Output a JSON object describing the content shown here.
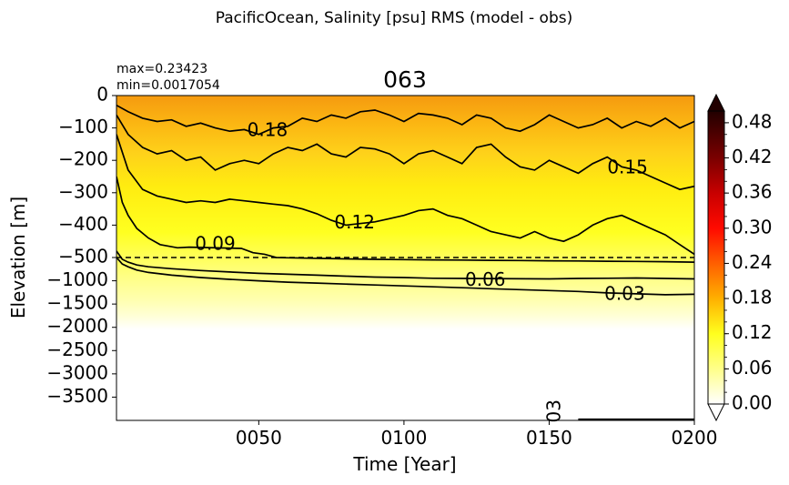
{
  "chart_data": {
    "type": "heatmap",
    "suptitle": "PacificOcean, Salinity [psu] RMS (model - obs)",
    "title": "063",
    "stats": {
      "max": "max=0.23423",
      "min": "min=0.0017054"
    },
    "xlabel": "Time [Year]",
    "ylabel": "Elevation [m]",
    "x_ticks": [
      "0050",
      "0100",
      "0150",
      "0200"
    ],
    "x_tick_values": [
      50,
      100,
      150,
      200
    ],
    "xlim": [
      1,
      200
    ],
    "y_ticks_upper": [
      "0",
      "−100",
      "−200",
      "−300",
      "−400",
      "−500"
    ],
    "y_ticks_lower": [
      "−1000",
      "−1500",
      "−2000",
      "−2500",
      "−3000",
      "−3500"
    ],
    "y_upper_range": [
      0,
      -500
    ],
    "y_lower_range": [
      -500,
      -4000
    ],
    "split_depth": -500,
    "colorbar": {
      "ticks": [
        "0.00",
        "0.06",
        "0.12",
        "0.18",
        "0.24",
        "0.30",
        "0.36",
        "0.42",
        "0.48"
      ],
      "range": [
        0,
        0.5
      ],
      "cmap": "hot_r",
      "extend": "both"
    },
    "contours": [
      {
        "level": 0.18,
        "label": "0.18",
        "label_pos": [
          53,
          -110
        ],
        "points": [
          [
            1,
            -30
          ],
          [
            5,
            -50
          ],
          [
            10,
            -70
          ],
          [
            15,
            -80
          ],
          [
            20,
            -75
          ],
          [
            25,
            -95
          ],
          [
            30,
            -85
          ],
          [
            35,
            -100
          ],
          [
            40,
            -110
          ],
          [
            45,
            -105
          ],
          [
            50,
            -120
          ],
          [
            55,
            -100
          ],
          [
            60,
            -95
          ],
          [
            65,
            -70
          ],
          [
            70,
            -80
          ],
          [
            75,
            -60
          ],
          [
            80,
            -70
          ],
          [
            85,
            -50
          ],
          [
            90,
            -45
          ],
          [
            95,
            -60
          ],
          [
            100,
            -80
          ],
          [
            105,
            -55
          ],
          [
            110,
            -60
          ],
          [
            115,
            -70
          ],
          [
            120,
            -90
          ],
          [
            125,
            -60
          ],
          [
            130,
            -70
          ],
          [
            135,
            -100
          ],
          [
            140,
            -110
          ],
          [
            145,
            -90
          ],
          [
            150,
            -60
          ],
          [
            155,
            -80
          ],
          [
            160,
            -100
          ],
          [
            165,
            -90
          ],
          [
            170,
            -70
          ],
          [
            175,
            -100
          ],
          [
            180,
            -80
          ],
          [
            185,
            -95
          ],
          [
            190,
            -70
          ],
          [
            195,
            -100
          ],
          [
            200,
            -80
          ]
        ]
      },
      {
        "level": 0.15,
        "label": "0.15",
        "label_pos": [
          177,
          -225
        ],
        "points": [
          [
            1,
            -60
          ],
          [
            5,
            -120
          ],
          [
            10,
            -160
          ],
          [
            15,
            -180
          ],
          [
            20,
            -170
          ],
          [
            25,
            -200
          ],
          [
            30,
            -190
          ],
          [
            35,
            -230
          ],
          [
            40,
            -210
          ],
          [
            45,
            -200
          ],
          [
            50,
            -210
          ],
          [
            55,
            -180
          ],
          [
            60,
            -160
          ],
          [
            65,
            -170
          ],
          [
            70,
            -150
          ],
          [
            75,
            -180
          ],
          [
            80,
            -190
          ],
          [
            85,
            -160
          ],
          [
            90,
            -165
          ],
          [
            95,
            -180
          ],
          [
            100,
            -210
          ],
          [
            105,
            -180
          ],
          [
            110,
            -170
          ],
          [
            115,
            -190
          ],
          [
            120,
            -210
          ],
          [
            125,
            -160
          ],
          [
            130,
            -150
          ],
          [
            135,
            -190
          ],
          [
            140,
            -220
          ],
          [
            145,
            -230
          ],
          [
            150,
            -200
          ],
          [
            155,
            -220
          ],
          [
            160,
            -240
          ],
          [
            165,
            -210
          ],
          [
            170,
            -190
          ],
          [
            175,
            -220
          ],
          [
            180,
            -230
          ],
          [
            185,
            -250
          ],
          [
            190,
            -270
          ],
          [
            195,
            -290
          ],
          [
            200,
            -280
          ]
        ]
      },
      {
        "level": 0.12,
        "label": "0.12",
        "label_pos": [
          83,
          -395
        ],
        "points": [
          [
            1,
            -120
          ],
          [
            5,
            -230
          ],
          [
            10,
            -290
          ],
          [
            15,
            -310
          ],
          [
            20,
            -320
          ],
          [
            25,
            -330
          ],
          [
            30,
            -325
          ],
          [
            35,
            -330
          ],
          [
            40,
            -320
          ],
          [
            45,
            -325
          ],
          [
            50,
            -330
          ],
          [
            55,
            -335
          ],
          [
            60,
            -340
          ],
          [
            65,
            -350
          ],
          [
            70,
            -365
          ],
          [
            75,
            -385
          ],
          [
            80,
            -400
          ],
          [
            90,
            -390
          ],
          [
            95,
            -380
          ],
          [
            100,
            -370
          ],
          [
            105,
            -355
          ],
          [
            110,
            -350
          ],
          [
            115,
            -370
          ],
          [
            120,
            -380
          ],
          [
            125,
            -400
          ],
          [
            130,
            -420
          ],
          [
            135,
            -430
          ],
          [
            140,
            -440
          ],
          [
            145,
            -420
          ],
          [
            150,
            -440
          ],
          [
            155,
            -450
          ],
          [
            160,
            -430
          ],
          [
            165,
            -400
          ],
          [
            170,
            -380
          ],
          [
            175,
            -370
          ],
          [
            180,
            -390
          ],
          [
            185,
            -410
          ],
          [
            190,
            -430
          ],
          [
            195,
            -460
          ],
          [
            200,
            -490
          ]
        ]
      },
      {
        "level": 0.09,
        "label": "0.09",
        "label_pos": [
          35,
          -460
        ],
        "points": [
          [
            1,
            -250
          ],
          [
            3,
            -330
          ],
          [
            5,
            -370
          ],
          [
            8,
            -410
          ],
          [
            12,
            -440
          ],
          [
            16,
            -460
          ],
          [
            22,
            -470
          ],
          [
            26,
            -468
          ],
          [
            44,
            -472
          ],
          [
            48,
            -485
          ],
          [
            52,
            -490
          ],
          [
            56,
            -500
          ],
          [
            60,
            -505
          ],
          [
            64,
            -510
          ],
          [
            68,
            -515
          ],
          [
            72,
            -520
          ],
          [
            80,
            -530
          ],
          [
            90,
            -540
          ],
          [
            100,
            -545
          ],
          [
            110,
            -550
          ],
          [
            120,
            -555
          ],
          [
            130,
            -560
          ],
          [
            140,
            -565
          ],
          [
            150,
            -570
          ],
          [
            160,
            -575
          ],
          [
            170,
            -580
          ],
          [
            180,
            -585
          ],
          [
            190,
            -590
          ],
          [
            200,
            -600
          ]
        ]
      },
      {
        "level": 0.06,
        "label": "0.06",
        "label_pos": [
          128,
          -1000
        ],
        "points": [
          [
            1,
            -480
          ],
          [
            3,
            -540
          ],
          [
            5,
            -600
          ],
          [
            8,
            -660
          ],
          [
            12,
            -700
          ],
          [
            20,
            -740
          ],
          [
            30,
            -780
          ],
          [
            40,
            -810
          ],
          [
            50,
            -840
          ],
          [
            60,
            -860
          ],
          [
            70,
            -880
          ],
          [
            80,
            -900
          ],
          [
            90,
            -920
          ],
          [
            100,
            -930
          ],
          [
            110,
            -945
          ],
          [
            150,
            -960
          ],
          [
            160,
            -950
          ],
          [
            170,
            -945
          ],
          [
            180,
            -940
          ],
          [
            190,
            -950
          ],
          [
            200,
            -960
          ]
        ]
      },
      {
        "level": 0.03,
        "label": "0.03",
        "label_pos": [
          176,
          -1300
        ],
        "points": [
          [
            1,
            -500
          ],
          [
            3,
            -640
          ],
          [
            5,
            -700
          ],
          [
            8,
            -770
          ],
          [
            12,
            -820
          ],
          [
            20,
            -880
          ],
          [
            30,
            -930
          ],
          [
            40,
            -970
          ],
          [
            50,
            -1000
          ],
          [
            60,
            -1030
          ],
          [
            70,
            -1050
          ],
          [
            80,
            -1070
          ],
          [
            90,
            -1090
          ],
          [
            100,
            -1110
          ],
          [
            110,
            -1130
          ],
          [
            120,
            -1150
          ],
          [
            130,
            -1170
          ],
          [
            140,
            -1190
          ],
          [
            150,
            -1210
          ],
          [
            160,
            -1230
          ],
          [
            170,
            -1260
          ],
          [
            180,
            -1280
          ],
          [
            190,
            -1300
          ],
          [
            200,
            -1290
          ]
        ]
      },
      {
        "level": 0.03,
        "label": "03",
        "label_pos": [
          152,
          -3800
        ],
        "label_rotate": true,
        "points": [
          [
            160,
            -3975
          ],
          [
            200,
            -3975
          ]
        ]
      }
    ]
  }
}
